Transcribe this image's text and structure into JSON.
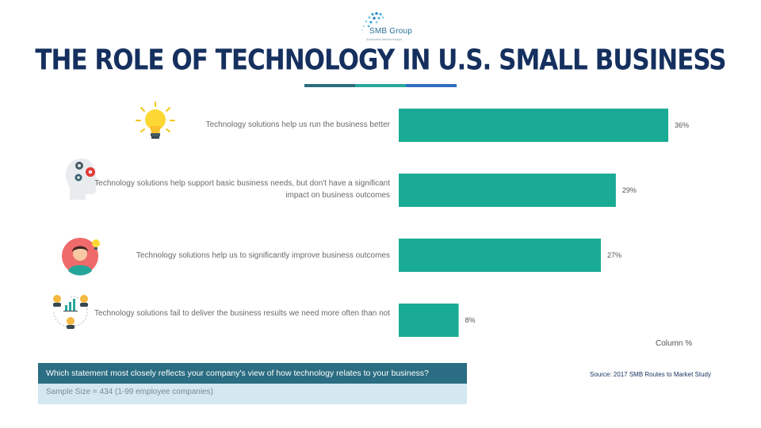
{
  "logo": {
    "name": "SMB Group",
    "tagline": "Actionable Market Insight"
  },
  "title": "THE ROLE OF TECHNOLOGY IN U.S. SMALL BUSINESS",
  "colors": {
    "bar": "#1aab95",
    "title": "#15305e",
    "rule": [
      "#2b6d7e",
      "#2aa59a",
      "#2f6fc0"
    ]
  },
  "icons": [
    "lightbulb-icon",
    "head-gears-icon",
    "person-idea-icon",
    "people-chart-icon"
  ],
  "chart_data": {
    "type": "bar",
    "orientation": "horizontal",
    "categories": [
      "Technology solutions help us run the business better",
      "Technology solutions help support basic business needs, but don't have a significant impact on business outcomes",
      "Technology solutions help us to significantly improve business outcomes",
      "Technology solutions fail to deliver the business results we need more often than not"
    ],
    "values": [
      36,
      29,
      27,
      8
    ],
    "value_labels": [
      "36%",
      "29%",
      "27%",
      "8%"
    ],
    "xlim": [
      0,
      36
    ],
    "axis_title": "Column %",
    "grid": false,
    "legend": "none"
  },
  "question": "Which statement most closely reflects your company's view of how technology relates to your business?",
  "sample": "Sample Size = 434 (1-99 employee companies)",
  "source": "Source: 2017 SMB Routes to Market Study"
}
